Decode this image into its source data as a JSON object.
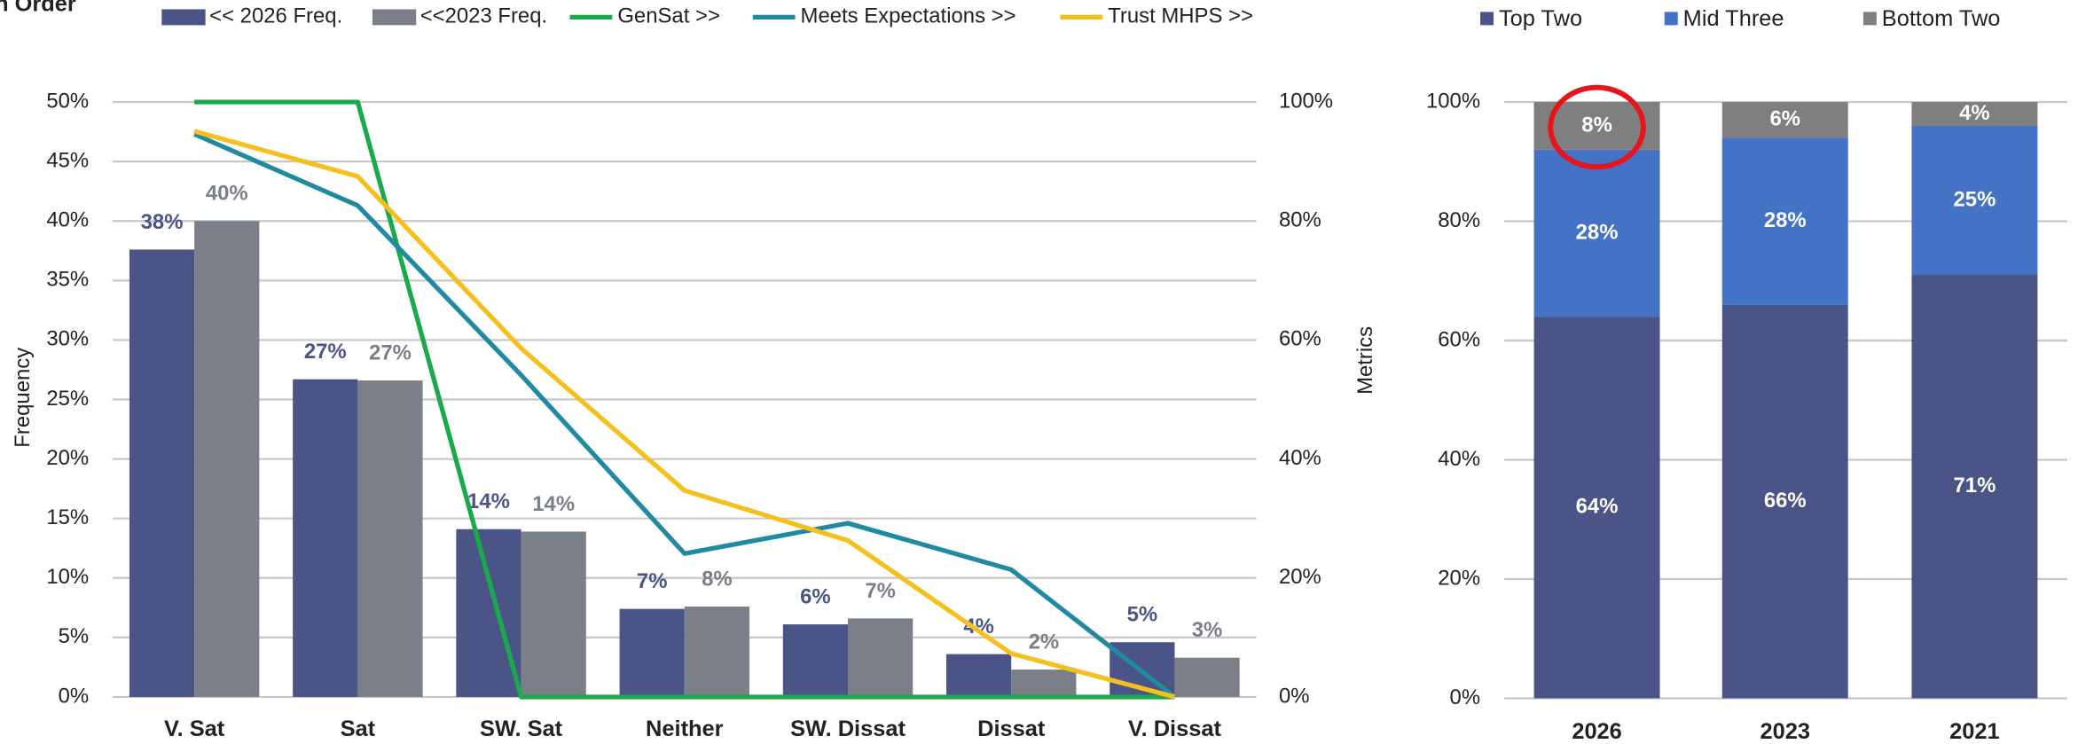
{
  "chart_data": [
    {
      "type": "bar_line",
      "title": "n Order",
      "y_label": "Frequency",
      "y2_label": "Metrics",
      "categories": [
        "V. Sat",
        "Sat",
        "SW. Sat",
        "Neither",
        "SW. Dissat",
        "Dissat",
        "V. Dissat"
      ],
      "ylim": [
        0,
        50
      ],
      "yticks": [
        {
          "value": 0,
          "label": "0%"
        },
        {
          "value": 5,
          "label": "5%"
        },
        {
          "value": 10,
          "label": "10%"
        },
        {
          "value": 15,
          "label": "15%"
        },
        {
          "value": 20,
          "label": "20%"
        },
        {
          "value": 25,
          "label": "25%"
        },
        {
          "value": 30,
          "label": "30%"
        },
        {
          "value": 35,
          "label": "35%"
        },
        {
          "value": 40,
          "label": "40%"
        },
        {
          "value": 45,
          "label": "45%"
        },
        {
          "value": 50,
          "label": "50%"
        }
      ],
      "y2lim": [
        0,
        100
      ],
      "y2ticks": [
        {
          "value": 0,
          "label": "0%"
        },
        {
          "value": 20,
          "label": "20%"
        },
        {
          "value": 40,
          "label": "40%"
        },
        {
          "value": 60,
          "label": "60%"
        },
        {
          "value": 80,
          "label": "80%"
        },
        {
          "value": 100,
          "label": "100%"
        }
      ],
      "grid": true,
      "legend": "top",
      "series": [
        {
          "name": "<< 2026 Freq.",
          "type": "bar",
          "color": "#4a5487",
          "values": [
            37.6,
            26.7,
            14.1,
            7.4,
            6.1,
            3.6,
            4.6
          ],
          "value_labels": [
            "38%",
            "27%",
            "14%",
            "7%",
            "6%",
            "4%",
            "5%"
          ]
        },
        {
          "name": "<<2023 Freq.",
          "type": "bar",
          "color": "#7b7f88",
          "values": [
            40,
            26.6,
            13.9,
            7.6,
            6.6,
            2.3,
            3.3
          ],
          "value_labels": [
            "40%",
            "27%",
            "14%",
            "8%",
            "7%",
            "2%",
            "3%"
          ]
        },
        {
          "name": "GenSat >>",
          "type": "line",
          "axis": "y2",
          "color": "#1aaa4b",
          "values": [
            100,
            100,
            0,
            0,
            0,
            0,
            0
          ]
        },
        {
          "name": "Meets Expectations >>",
          "type": "line",
          "axis": "y2",
          "color": "#1f8aa0",
          "values": [
            94.6,
            82.6,
            54.1,
            24.1,
            29.2,
            21.4,
            0
          ]
        },
        {
          "name": "Trust MHPS >>",
          "type": "line",
          "axis": "y2",
          "color": "#f5c01c",
          "values": [
            95.1,
            87.5,
            58.6,
            34.7,
            26.3,
            7.3,
            0
          ]
        }
      ]
    },
    {
      "type": "stacked_bar",
      "categories": [
        "2026",
        "2023",
        "2021"
      ],
      "ylim": [
        0,
        100
      ],
      "yticks": [
        {
          "value": 0,
          "label": "0%"
        },
        {
          "value": 20,
          "label": "20%"
        },
        {
          "value": 40,
          "label": "40%"
        },
        {
          "value": 60,
          "label": "60%"
        },
        {
          "value": 80,
          "label": "80%"
        },
        {
          "value": 100,
          "label": "100%"
        }
      ],
      "grid": true,
      "legend": "top",
      "series": [
        {
          "name": "Top Two",
          "color": "#4a5487",
          "values": [
            64,
            66,
            71
          ],
          "value_labels": [
            "64%",
            "66%",
            "71%"
          ]
        },
        {
          "name": "Mid Three",
          "color": "#4472c4",
          "values": [
            28,
            28,
            25
          ],
          "value_labels": [
            "28%",
            "28%",
            "25%"
          ]
        },
        {
          "name": "Bottom Two",
          "color": "#7f7f7f",
          "values": [
            8,
            6,
            4
          ],
          "value_labels": [
            "8%",
            "6%",
            "4%"
          ]
        }
      ]
    }
  ]
}
